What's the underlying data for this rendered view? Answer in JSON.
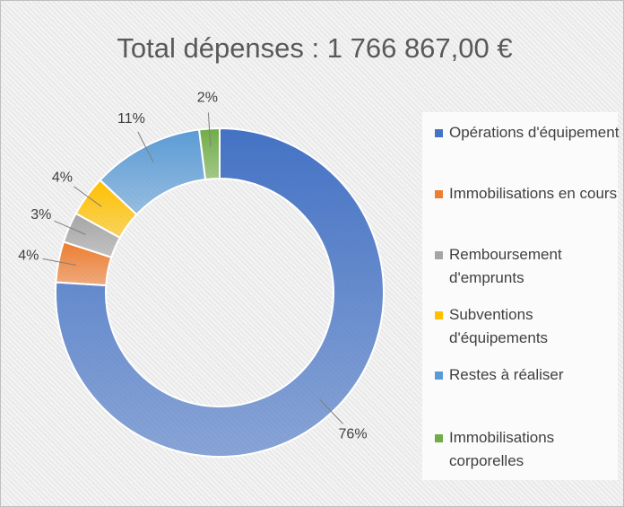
{
  "chart_data": {
    "type": "donut",
    "title": "Total dépenses : 1 766 867,00 €",
    "categories": [
      "Opérations d'équipement",
      "Immobilisations en cours",
      "Remboursement d'emprunts",
      "Subventions d'équipements",
      "Restes à réaliser",
      "Immobilisations corporelles"
    ],
    "values": [
      76,
      4,
      3,
      4,
      11,
      2
    ],
    "value_labels": [
      "76%",
      "4%",
      "3%",
      "4%",
      "11%",
      "2%"
    ],
    "colors": [
      "#4472c4",
      "#ed7d31",
      "#a5a5a5",
      "#ffc000",
      "#5b9bd5",
      "#70ad47"
    ],
    "legend": "right"
  }
}
